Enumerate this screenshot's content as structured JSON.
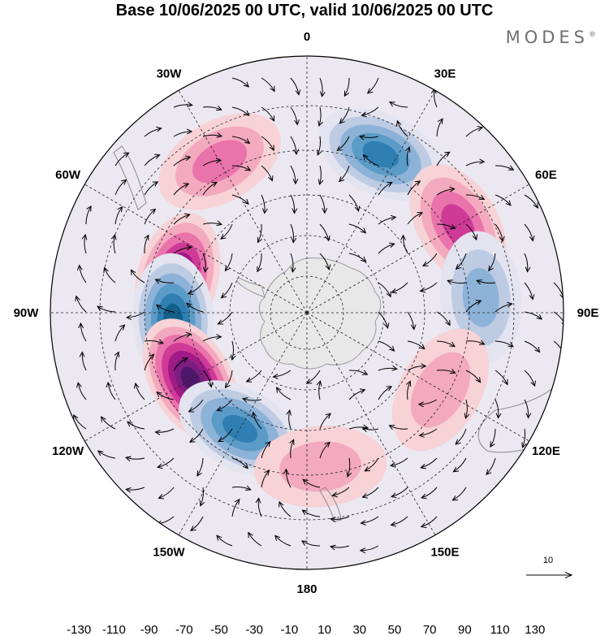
{
  "title": "Base 10/06/2025 00 UTC, valid 10/06/2025 00 UTC",
  "brand": {
    "name": "MODES",
    "mark": "®"
  },
  "map": {
    "projection": "south polar stereographic",
    "longitude_labels": [
      {
        "lon": 0,
        "text": "0"
      },
      {
        "lon": 30,
        "text": "30E"
      },
      {
        "lon": 60,
        "text": "60E"
      },
      {
        "lon": 90,
        "text": "90E"
      },
      {
        "lon": 120,
        "text": "120E"
      },
      {
        "lon": 150,
        "text": "150E"
      },
      {
        "lon": 180,
        "text": "180"
      },
      {
        "lon": -150,
        "text": "150W"
      },
      {
        "lon": -120,
        "text": "120W"
      },
      {
        "lon": -90,
        "text": "90W"
      },
      {
        "lon": -60,
        "text": "60W"
      },
      {
        "lon": -30,
        "text": "30W"
      }
    ],
    "reference_vector": {
      "label": "10"
    },
    "anomaly_centers": [
      {
        "lon": -30,
        "sign": "positive",
        "strength": 70
      },
      {
        "lon": 25,
        "sign": "negative",
        "strength": -110
      },
      {
        "lon": 60,
        "sign": "positive",
        "strength": 90
      },
      {
        "lon": 85,
        "sign": "negative",
        "strength": -70
      },
      {
        "lon": -75,
        "sign": "positive",
        "strength": 120
      },
      {
        "lon": -93,
        "sign": "negative",
        "strength": -130
      },
      {
        "lon": -120,
        "sign": "positive",
        "strength": 140
      },
      {
        "lon": -150,
        "sign": "negative",
        "strength": -100
      },
      {
        "lon": 175,
        "sign": "positive",
        "strength": 40
      },
      {
        "lon": 120,
        "sign": "positive",
        "strength": 50
      }
    ]
  },
  "colorbar": {
    "ticks": [
      "-130",
      "-110",
      "-90",
      "-70",
      "-50",
      "-30",
      "-10",
      "10",
      "30",
      "50",
      "70",
      "90",
      "110",
      "130"
    ],
    "colors": [
      "#0f3a57",
      "#135f8c",
      "#2f7fb2",
      "#5b9bc8",
      "#8db2d7",
      "#bdcbe3",
      "#e3e4f0",
      "#ffffff",
      "#f7d2d6",
      "#f3a9be",
      "#ea73ac",
      "#cf3a97",
      "#a11b88",
      "#7e1d80",
      "#4f176a"
    ]
  }
}
